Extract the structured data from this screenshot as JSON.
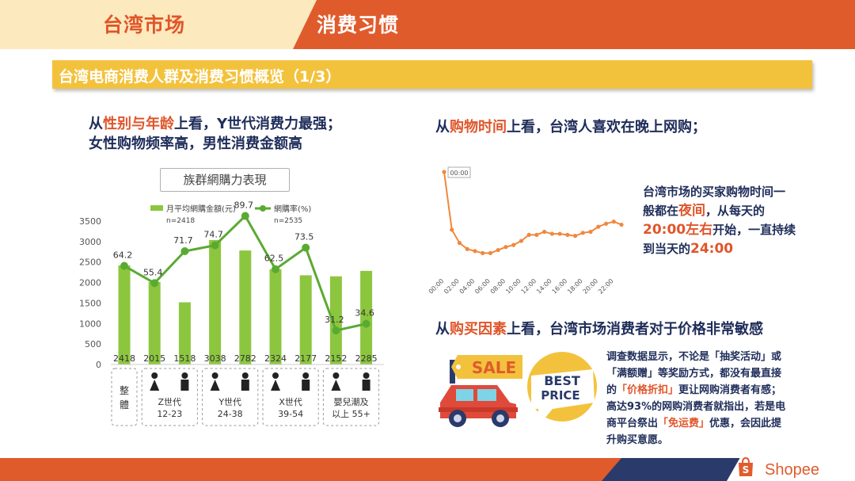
{
  "header": {
    "left_title": "台湾市场",
    "right_title": "消费习惯"
  },
  "section_title": "台湾电商消费人群及消费习惯概览（1/3）",
  "left": {
    "h_pre": "从",
    "h_hl": "性别与年龄",
    "h_post": "上看，Y世代消费力最强；",
    "h_line2": "女性购物频率高，男性消费金额高"
  },
  "chart_data": [
    {
      "type": "bar",
      "title": "族群網購力表現",
      "categories": [
        "整體",
        "Z世代 女",
        "Z世代 男",
        "Y世代 女",
        "Y世代 男",
        "X世代 女",
        "X世代 男",
        "嬰兒潮及以上 女",
        "嬰兒潮及以上 男"
      ],
      "series": [
        {
          "name": "月平均網購金額(元)",
          "note": "n=2418",
          "type": "bar",
          "values": [
            2418,
            2015,
            1518,
            3038,
            2782,
            2324,
            2177,
            2152,
            2285
          ]
        },
        {
          "name": "網購率(%)",
          "note": "n=2535",
          "type": "line",
          "values": [
            64.2,
            55.4,
            71.7,
            74.7,
            89.7,
            62.5,
            73.5,
            31.2,
            34.6
          ]
        }
      ],
      "yticks": [
        0,
        500,
        1000,
        1500,
        2000,
        2500,
        3000,
        3500
      ],
      "ylim": [
        0,
        3500
      ],
      "groups": [
        {
          "label": "整\n體",
          "label_lines": [
            "整",
            "體"
          ]
        },
        {
          "label_lines": [
            "Z世代",
            "12-23"
          ]
        },
        {
          "label_lines": [
            "Y世代",
            "24-38"
          ]
        },
        {
          "label_lines": [
            "X世代",
            "39-54"
          ]
        },
        {
          "label_lines": [
            "嬰兒潮及",
            "以上 55+"
          ]
        }
      ]
    },
    {
      "type": "line",
      "label": "00:00",
      "x": [
        "00:00",
        "01:00",
        "02:00",
        "03:00",
        "04:00",
        "05:00",
        "06:00",
        "07:00",
        "08:00",
        "09:00",
        "10:00",
        "11:00",
        "12:00",
        "13:00",
        "14:00",
        "15:00",
        "16:00",
        "17:00",
        "18:00",
        "19:00",
        "20:00",
        "21:00",
        "22:00",
        "23:00"
      ],
      "xticks": [
        "00:00",
        "02:00",
        "04:00",
        "06:00",
        "08:00",
        "10:00",
        "12:00",
        "14:00",
        "16:00",
        "18:00",
        "20:00",
        "22:00"
      ],
      "values": [
        100,
        43,
        30,
        24,
        22,
        20,
        20,
        23,
        26,
        28,
        32,
        38,
        38,
        41,
        39,
        39,
        38,
        37,
        40,
        41,
        46,
        49,
        51,
        48
      ],
      "ylim": [
        0,
        100
      ],
      "color": "#f0883e"
    }
  ],
  "right": {
    "h1_pre": "从",
    "h1_hl": "购物时间",
    "h1_post": "上看，台湾人喜欢在晚上网购；",
    "ann_l1": "台湾市场的买家购物时间一",
    "ann_l2_pre": "般都在",
    "ann_l2_hl": "夜间",
    "ann_l2_post": "，从每天的",
    "ann_l3_hl": "20:00左右",
    "ann_l3_post": "开始，一直持续",
    "ann_l4_pre": "到当天的",
    "ann_l4_hl": "24:00",
    "h2_pre": "从",
    "h2_hl": "购买因素",
    "h2_post": "上看，台湾市场消费者对于价格非常敏感",
    "sale_text": "SALE",
    "best_price_l1": "BEST",
    "best_price_l2": "PRICE",
    "para": {
      "p1": "调查数据显示，不论是「抽奖活动」或",
      "p2": "「满额赠」等奖励方式，都没有最直接",
      "p3_pre": "的",
      "p3_hl": "「价格折扣」",
      "p3_post": "更让网购消费者有感；",
      "p4": "高达93%的网购消费者就指出，若是电",
      "p5_pre": "商平台祭出",
      "p5_hl": "「免运费」",
      "p5_post": "优惠，会因此提",
      "p6": "升购买意愿。"
    }
  },
  "footer": {
    "logo_text": "Shopee"
  },
  "colors": {
    "orange": "#e05b2c",
    "navy": "#1f2d5a",
    "yellow": "#f3c23d",
    "green": "#8cc63f",
    "line_green": "#5aaa32",
    "line_orange": "#f0883e"
  }
}
